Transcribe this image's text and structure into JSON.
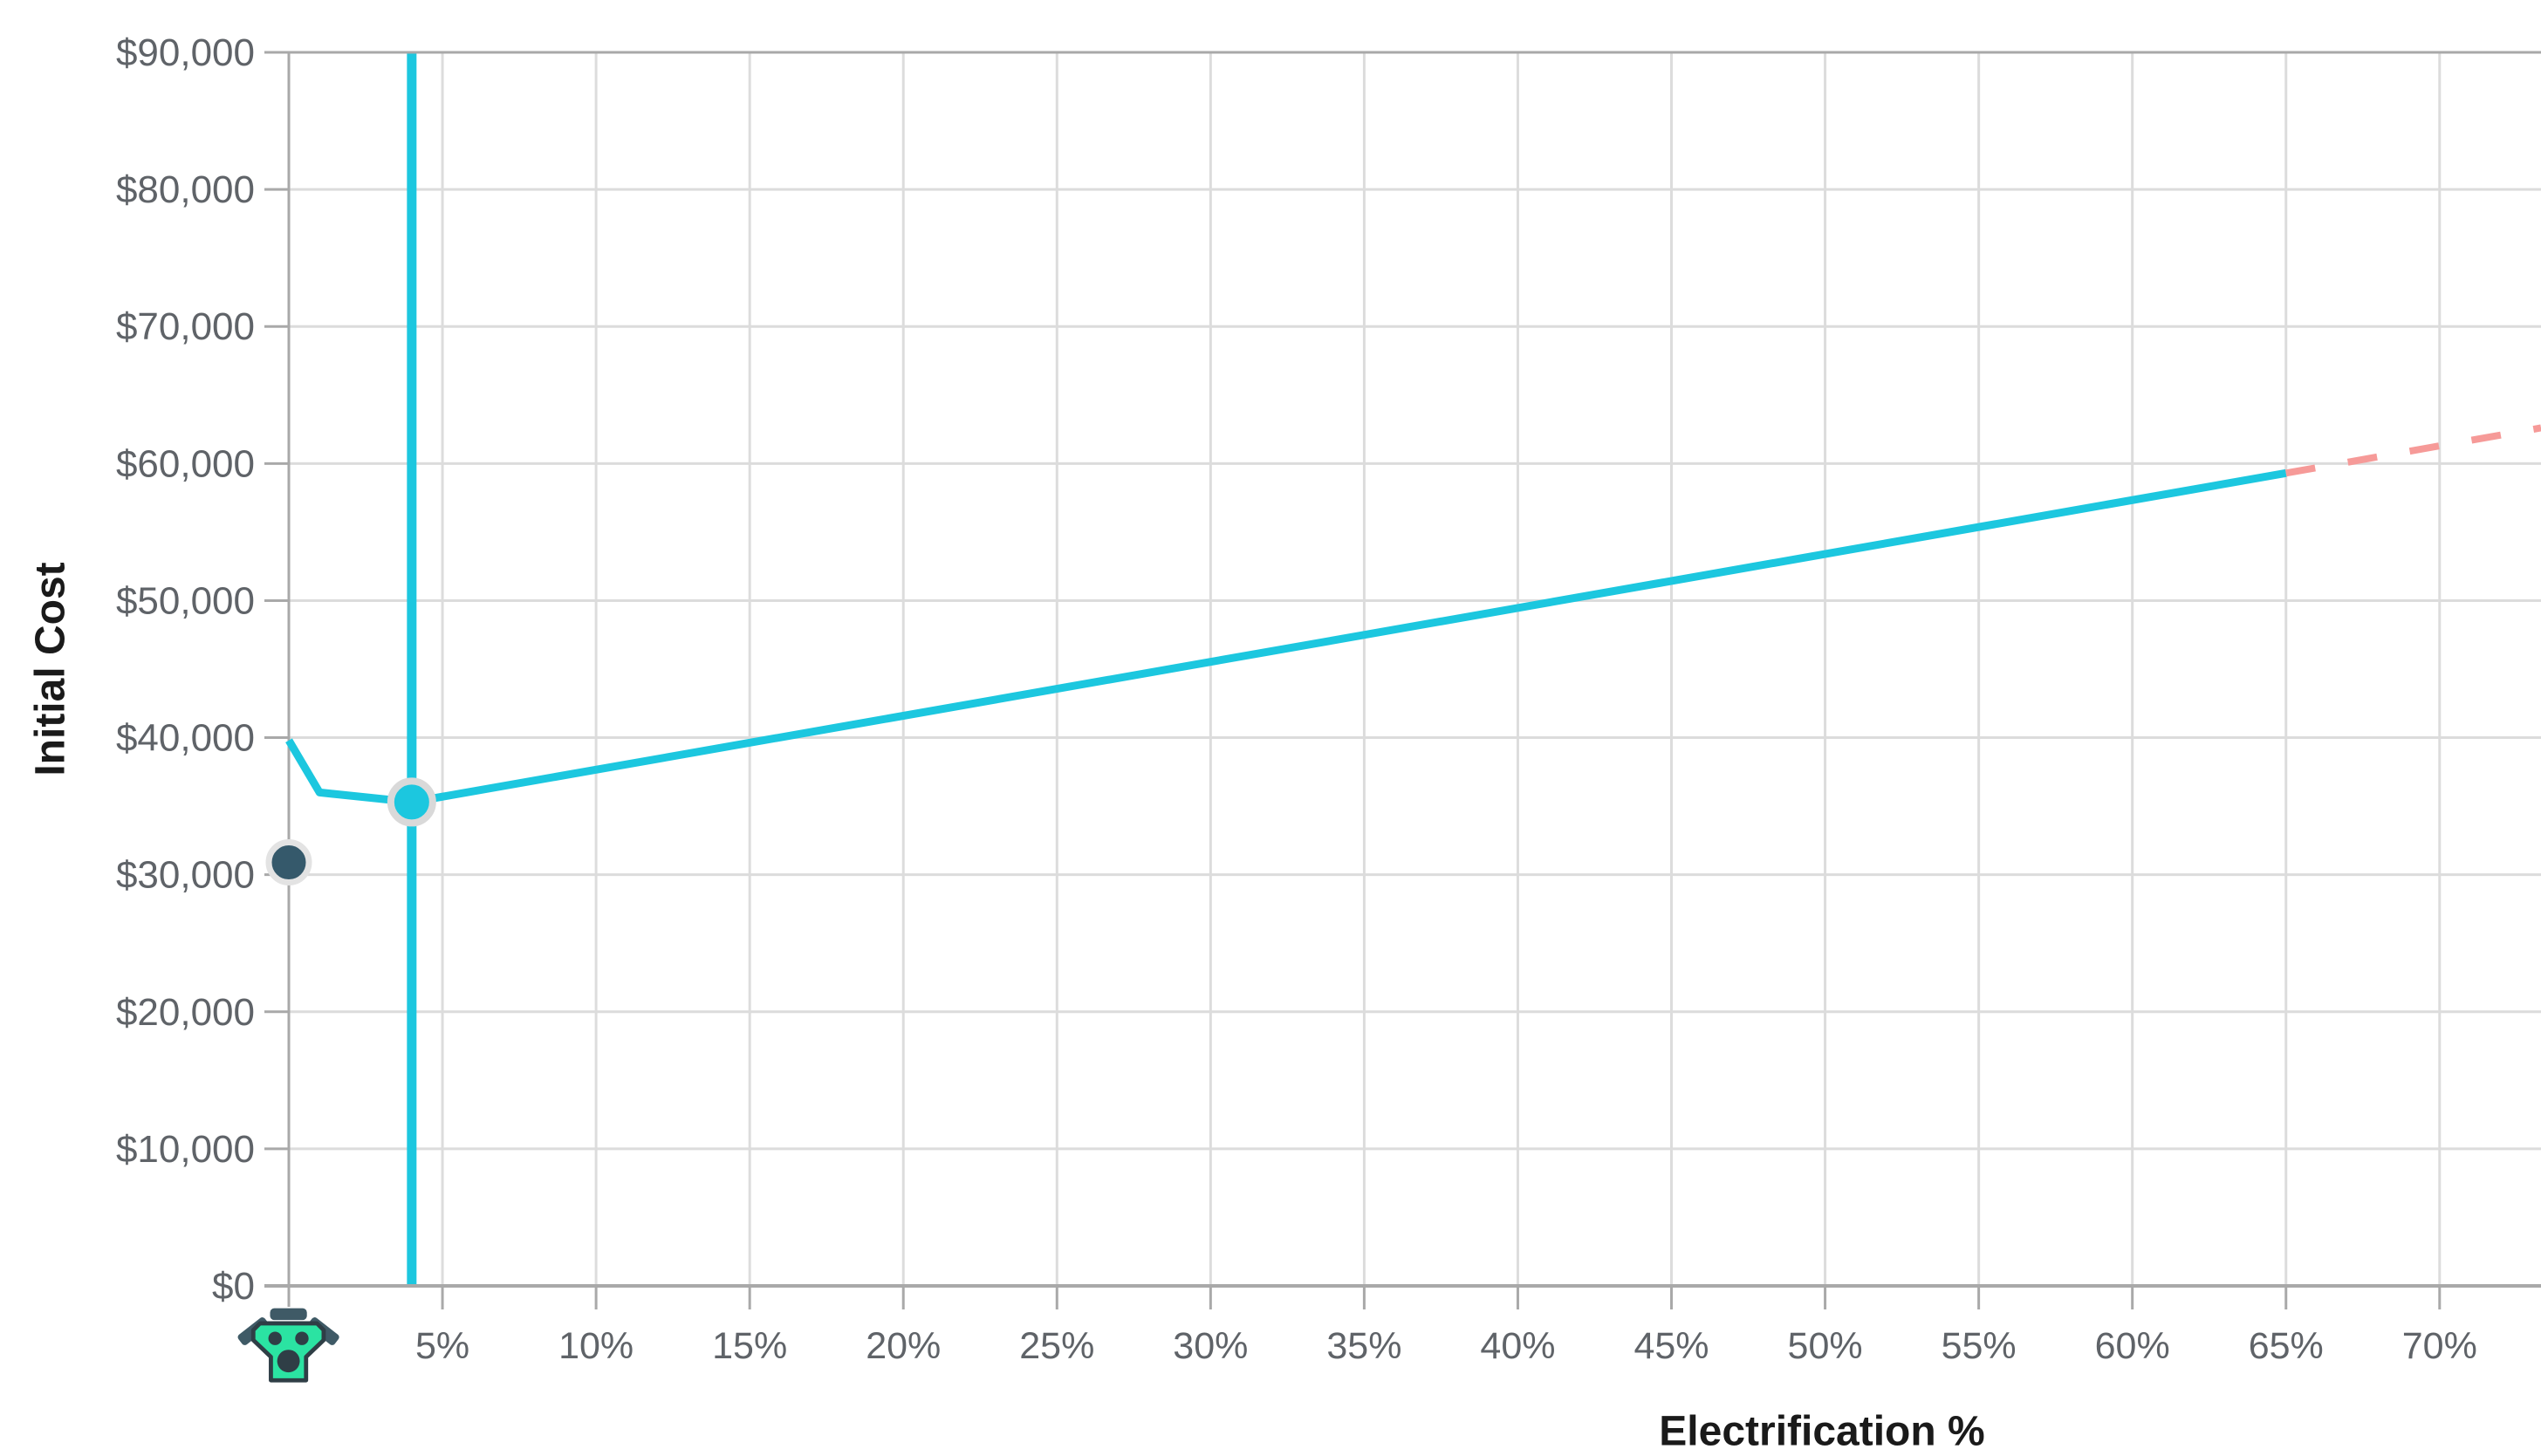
{
  "chart_data": {
    "type": "line",
    "title": "",
    "xlabel": "Electrification %",
    "ylabel": "Initial Cost",
    "xlim": [
      0,
      73.3
    ],
    "ylim": [
      0,
      90000
    ],
    "grid": true,
    "legend": "none",
    "x_ticks": [
      {
        "value": 5,
        "label": "5%"
      },
      {
        "value": 10,
        "label": "10%"
      },
      {
        "value": 15,
        "label": "15%"
      },
      {
        "value": 20,
        "label": "20%"
      },
      {
        "value": 25,
        "label": "25%"
      },
      {
        "value": 30,
        "label": "30%"
      },
      {
        "value": 35,
        "label": "35%"
      },
      {
        "value": 40,
        "label": "40%"
      },
      {
        "value": 45,
        "label": "45%"
      },
      {
        "value": 50,
        "label": "50%"
      },
      {
        "value": 55,
        "label": "55%"
      },
      {
        "value": 60,
        "label": "60%"
      },
      {
        "value": 65,
        "label": "65%"
      },
      {
        "value": 70,
        "label": "70%"
      }
    ],
    "y_ticks": [
      {
        "value": 0,
        "label": "$0"
      },
      {
        "value": 10000,
        "label": "$10,000"
      },
      {
        "value": 20000,
        "label": "$20,000"
      },
      {
        "value": 30000,
        "label": "$30,000"
      },
      {
        "value": 40000,
        "label": "$40,000"
      },
      {
        "value": 50000,
        "label": "$50,000"
      },
      {
        "value": 60000,
        "label": "$60,000"
      },
      {
        "value": 70000,
        "label": "$70,000"
      },
      {
        "value": 80000,
        "label": "$80,000"
      },
      {
        "value": 90000,
        "label": "$90,000"
      }
    ],
    "series": [
      {
        "name": "initial-cost-curve",
        "style": "solid",
        "color": "#1CC7DF",
        "width": 9,
        "points": [
          [
            0,
            39800
          ],
          [
            1,
            36000
          ],
          [
            4,
            35300
          ],
          [
            65,
            59300
          ]
        ]
      },
      {
        "name": "initial-cost-projection",
        "style": "dashed",
        "color": "#F69A98",
        "width": 8,
        "points": [
          [
            65,
            59300
          ],
          [
            73.3,
            62600
          ]
        ]
      }
    ],
    "markers": {
      "selected_x": 4,
      "selected_point": {
        "x": 4,
        "y": 35300,
        "color": "#1CC7DF",
        "halo": "#D9D9D9"
      },
      "baseline_point": {
        "x": 0,
        "y": 30900,
        "color": "#35596B",
        "halo": "#E3E3E3"
      }
    },
    "axis_icon": {
      "name": "engine-icon",
      "position_x": 0,
      "colors": {
        "body": "#2BE3A2",
        "dark": "#2F3E46",
        "slate": "#3F5A66"
      }
    }
  },
  "colors": {
    "background": "#FFFFFF",
    "gridline": "#DCDCDC",
    "axis": "#A9A9A9",
    "tick_label": "#5F6368",
    "axis_title": "#1A1A1A",
    "marker_line": "#1CC7DF"
  }
}
